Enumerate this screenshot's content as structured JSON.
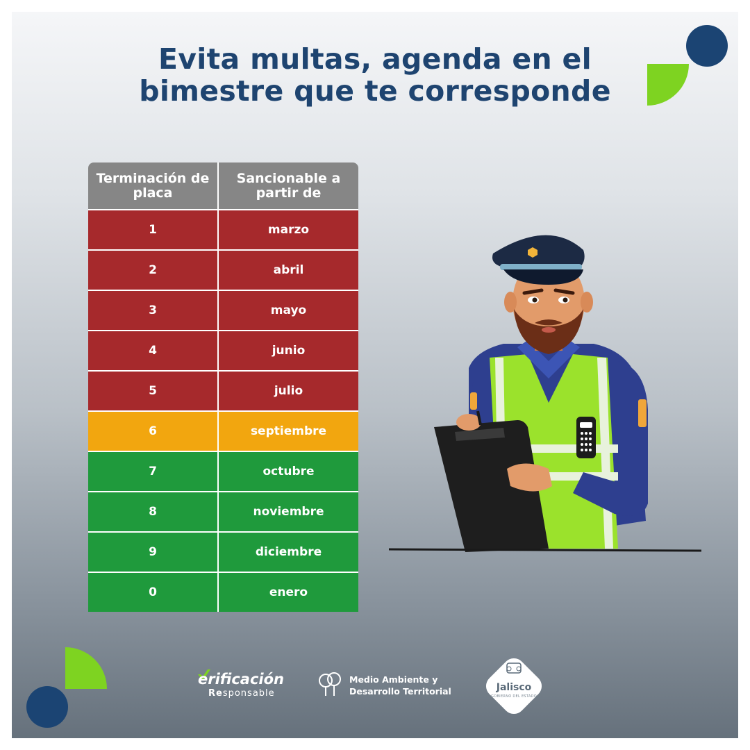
{
  "title": {
    "line1": "Evita multas, agenda en el",
    "line2": "bimestre que te corresponde"
  },
  "table": {
    "header_col1": "Terminación de placa",
    "header_col2": "Sancionable a partir de",
    "rows": [
      {
        "digit": "1",
        "month": "marzo",
        "status": "red"
      },
      {
        "digit": "2",
        "month": "abril",
        "status": "red"
      },
      {
        "digit": "3",
        "month": "mayo",
        "status": "red"
      },
      {
        "digit": "4",
        "month": "junio",
        "status": "red"
      },
      {
        "digit": "5",
        "month": "julio",
        "status": "red"
      },
      {
        "digit": "6",
        "month": "septiembre",
        "status": "orange"
      },
      {
        "digit": "7",
        "month": "octubre",
        "status": "green"
      },
      {
        "digit": "8",
        "month": "noviembre",
        "status": "green"
      },
      {
        "digit": "9",
        "month": "diciembre",
        "status": "green"
      },
      {
        "digit": "0",
        "month": "enero",
        "status": "green"
      }
    ]
  },
  "colors": {
    "navy": "#1b4473",
    "green_accent": "#7ed321",
    "header_gray": "#868686",
    "red": "#a6292c",
    "orange": "#f2a60f",
    "green": "#1f9a3c"
  },
  "illustration": "traffic-officer-with-clipboard",
  "footer": {
    "verificacion": "erificación",
    "responsable_bold": "Re",
    "responsable_rest": "sponsable",
    "medio_line1": "Medio Ambiente y",
    "medio_line2": "Desarrollo Territorial",
    "jalisco": "Jalisco",
    "gobierno": "GOBIERNO DEL ESTADO"
  }
}
